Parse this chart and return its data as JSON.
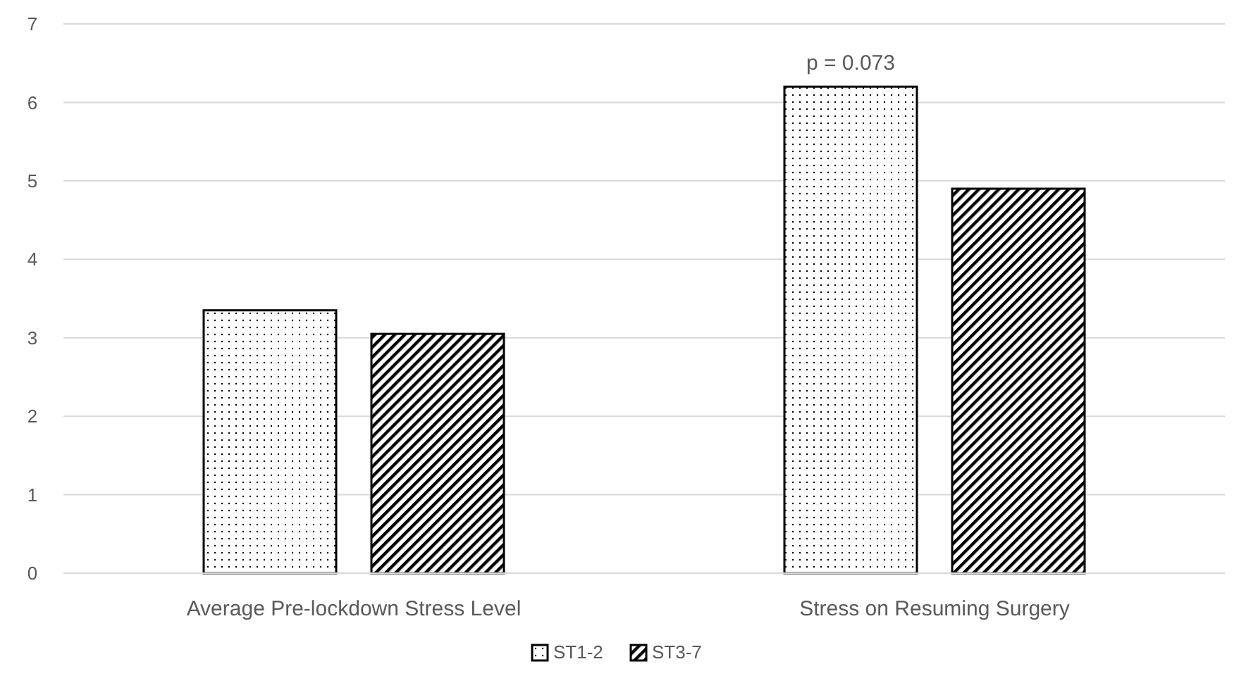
{
  "chart_data": {
    "type": "bar",
    "categories": [
      "Average Pre-lockdown Stress Level",
      "Stress on Resuming Surgery"
    ],
    "series": [
      {
        "name": "ST1-2",
        "color": "#000000",
        "values": [
          3.35,
          6.2
        ]
      },
      {
        "name": "ST3-7",
        "color": "#000000",
        "values": [
          3.05,
          4.9
        ]
      }
    ],
    "ylim": [
      0,
      7
    ],
    "yticks": [
      0,
      1,
      2,
      3,
      4,
      5,
      6,
      7
    ],
    "grid": "y",
    "legend": "bottom",
    "annotations": [
      "p = 0.073"
    ]
  }
}
